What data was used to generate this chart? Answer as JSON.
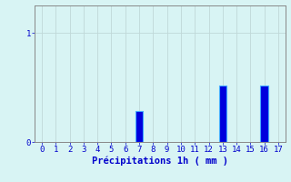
{
  "categories": [
    0,
    1,
    2,
    3,
    4,
    5,
    6,
    7,
    8,
    9,
    10,
    11,
    12,
    13,
    14,
    15,
    16,
    17
  ],
  "values": [
    0,
    0,
    0,
    0,
    0,
    0,
    0,
    0.28,
    0,
    0,
    0,
    0,
    0,
    0.52,
    0,
    0,
    0.52,
    0
  ],
  "bar_color": "#0000dd",
  "bar_edge_color": "#44aaff",
  "background_color": "#d8f4f4",
  "axis_bg_color": "#d8f4f4",
  "xlabel": "Précipitations 1h ( mm )",
  "xlabel_color": "#0000cc",
  "xlabel_fontsize": 7.5,
  "tick_color": "#0000cc",
  "tick_fontsize": 6.5,
  "ytick_labels": [
    "0",
    "1"
  ],
  "ytick_values": [
    0,
    1
  ],
  "ylim": [
    0,
    1.25
  ],
  "xlim": [
    -0.5,
    17.5
  ],
  "grid_color": "#c0d8d8",
  "spine_color": "#888888"
}
